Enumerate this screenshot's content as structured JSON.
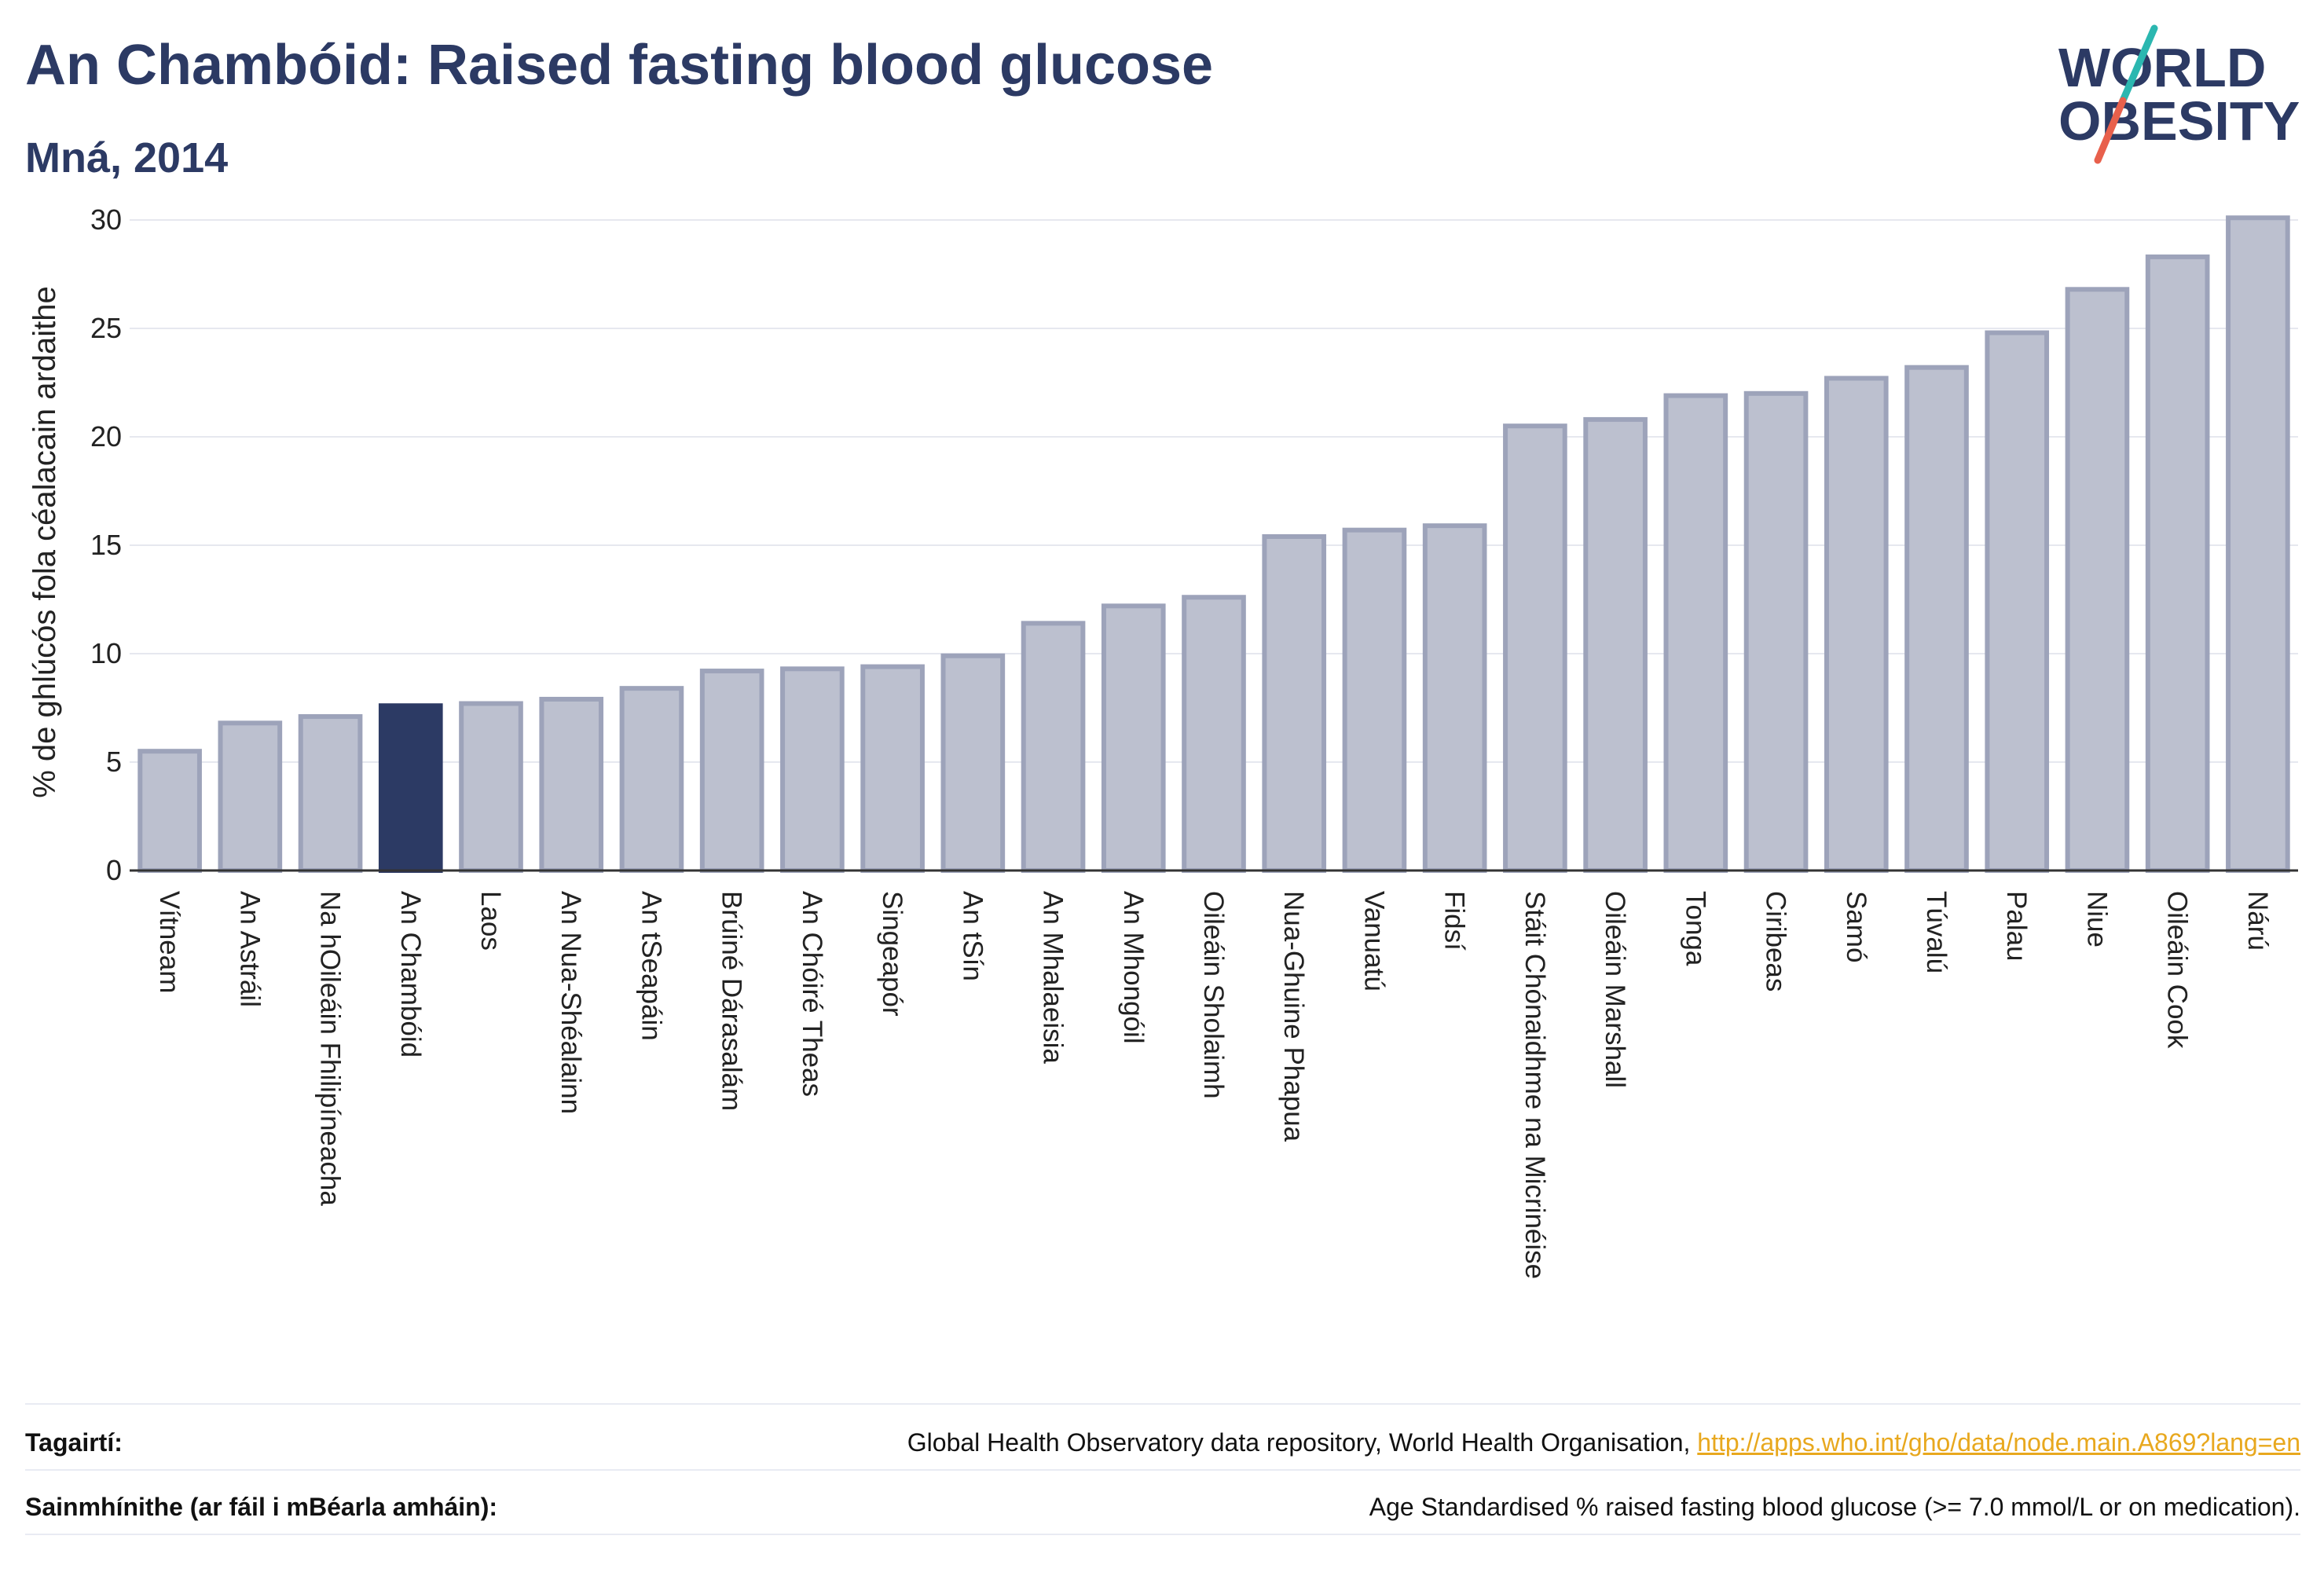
{
  "header": {
    "title": "An Chambóid: Raised fasting blood glucose",
    "subtitle": "Mná, 2014",
    "logo_line1": "WORLD",
    "logo_line2": "OBESITY"
  },
  "colors": {
    "bar": "#bcc0cf",
    "bar_stroke": "#9da3ba",
    "highlight": "#2c3a64",
    "text": "#2c3a64",
    "link": "#e8a81e",
    "logo_teal": "#2bb7b0",
    "logo_red": "#e8604c"
  },
  "chart_data": {
    "type": "bar",
    "title": "",
    "xlabel": "",
    "ylabel": "% de ghlúcós fola céalacain ardaithe",
    "ylim": [
      0,
      30
    ],
    "yticks": [
      0,
      5,
      10,
      15,
      20,
      25,
      30
    ],
    "grid": true,
    "highlight": "An Chambóid",
    "categories": [
      "Vítneam",
      "An Astráil",
      "Na hOileáin Fhilipíneacha",
      "An Chambóid",
      "Laos",
      "An Nua-Shéalainn",
      "An tSeapáin",
      "Brúiné Dárasalám",
      "An Chóiré Theas",
      "Singeapór",
      "An tSín",
      "An Mhalaeisia",
      "An Mhongóil",
      "Oileáin Sholaimh",
      "Nua-Ghuine Phapua",
      "Vanuatú",
      "Fidsí",
      "Stáit Chónaidhme na Micrinéise",
      "Oileáin Marshall",
      "Tonga",
      "Ciribeas",
      "Samó",
      "Túvalú",
      "Palau",
      "Niue",
      "Oileáin Cook",
      "Nárú"
    ],
    "values": [
      5.5,
      6.8,
      7.1,
      7.6,
      7.7,
      7.9,
      8.4,
      9.2,
      9.3,
      9.4,
      9.9,
      11.4,
      12.2,
      12.6,
      15.4,
      15.7,
      15.9,
      20.5,
      20.8,
      21.9,
      22.0,
      22.7,
      23.2,
      24.8,
      26.8,
      28.3,
      30.1
    ]
  },
  "footer": {
    "ref_label": "Tagairtí:",
    "ref_text": "Global Health Observatory data repository, World Health Organisation,",
    "ref_link": "http://apps.who.int/gho/data/node.main.A869?lang=en",
    "def_label": "Sainmhínithe (ar fáil i mBéarla amháin):",
    "def_text": "Age Standardised % raised fasting blood glucose (>= 7.0 mmol/L or on medication)."
  }
}
